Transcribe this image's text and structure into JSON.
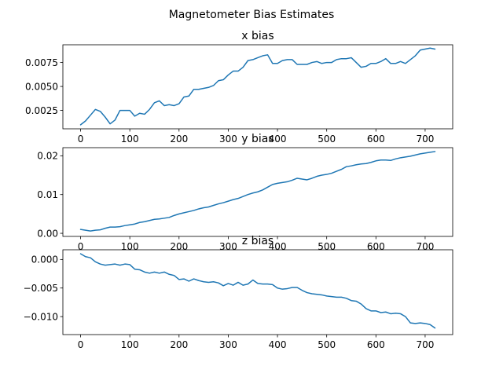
{
  "figure": {
    "title": "Magnetometer Bias Estimates"
  },
  "chart_data": [
    {
      "type": "line",
      "title": "x bias",
      "xlabel": "",
      "ylabel": "",
      "xlim": [
        -36,
        756
      ],
      "ylim": [
        0.00058,
        0.00935
      ],
      "xticks": [
        0,
        100,
        200,
        300,
        400,
        500,
        600,
        700
      ],
      "xtick_labels": [
        "0",
        "100",
        "200",
        "300",
        "400",
        "500",
        "600",
        "700"
      ],
      "yticks": [
        0.0025,
        0.005,
        0.0075
      ],
      "ytick_labels": [
        "0.0025",
        "0.0050",
        "0.0075"
      ],
      "grid": false,
      "line_color": "#1f77b4",
      "series": [
        {
          "x": [
            0,
            10,
            20,
            30,
            40,
            50,
            60,
            70,
            80,
            90,
            100,
            110,
            120,
            130,
            140,
            150,
            160,
            170,
            180,
            190,
            200,
            210,
            220,
            230,
            240,
            250,
            260,
            270,
            280,
            290,
            300,
            310,
            320,
            330,
            340,
            350,
            360,
            370,
            380,
            390,
            400,
            410,
            420,
            430,
            440,
            450,
            460,
            470,
            480,
            490,
            500,
            510,
            520,
            530,
            540,
            550,
            560,
            570,
            580,
            590,
            600,
            610,
            620,
            630,
            640,
            650,
            660,
            670,
            680,
            690,
            700,
            710,
            720
          ],
          "values": [
            0.001,
            0.0014,
            0.002,
            0.0026,
            0.0024,
            0.0018,
            0.0011,
            0.0015,
            0.0025,
            0.0025,
            0.0025,
            0.0019,
            0.0022,
            0.0021,
            0.0026,
            0.0033,
            0.0035,
            0.003,
            0.0031,
            0.003,
            0.0032,
            0.0039,
            0.004,
            0.0047,
            0.0047,
            0.0048,
            0.0049,
            0.0051,
            0.0056,
            0.0057,
            0.0062,
            0.0066,
            0.0066,
            0.007,
            0.0077,
            0.0078,
            0.008,
            0.0082,
            0.0083,
            0.0074,
            0.0074,
            0.0077,
            0.0078,
            0.0078,
            0.0073,
            0.0073,
            0.0073,
            0.0075,
            0.0076,
            0.0074,
            0.0075,
            0.0075,
            0.0078,
            0.0079,
            0.0079,
            0.008,
            0.0075,
            0.007,
            0.0071,
            0.0074,
            0.0074,
            0.0076,
            0.0079,
            0.0074,
            0.0074,
            0.0076,
            0.0074,
            0.0078,
            0.0082,
            0.0088,
            0.0089,
            0.009,
            0.0089
          ]
        }
      ]
    },
    {
      "type": "line",
      "title": "y bias",
      "xlabel": "",
      "ylabel": "",
      "xlim": [
        -36,
        756
      ],
      "ylim": [
        -0.0008,
        0.0221
      ],
      "xticks": [
        0,
        100,
        200,
        300,
        400,
        500,
        600,
        700
      ],
      "xtick_labels": [
        "0",
        "100",
        "200",
        "300",
        "400",
        "500",
        "600",
        "700"
      ],
      "yticks": [
        0.0,
        0.01,
        0.02
      ],
      "ytick_labels": [
        "0.00",
        "0.01",
        "0.02"
      ],
      "grid": false,
      "line_color": "#1f77b4",
      "series": [
        {
          "x": [
            0,
            10,
            20,
            30,
            40,
            50,
            60,
            70,
            80,
            90,
            100,
            110,
            120,
            130,
            140,
            150,
            160,
            170,
            180,
            190,
            200,
            210,
            220,
            230,
            240,
            250,
            260,
            270,
            280,
            290,
            300,
            310,
            320,
            330,
            340,
            350,
            360,
            370,
            380,
            390,
            400,
            410,
            420,
            430,
            440,
            450,
            460,
            470,
            480,
            490,
            500,
            510,
            520,
            530,
            540,
            550,
            560,
            570,
            580,
            590,
            600,
            610,
            620,
            630,
            640,
            650,
            660,
            670,
            680,
            690,
            700,
            710,
            720
          ],
          "values": [
            0.001,
            0.0008,
            0.0006,
            0.0008,
            0.0009,
            0.0013,
            0.0016,
            0.0016,
            0.0017,
            0.002,
            0.0022,
            0.0024,
            0.0028,
            0.003,
            0.0033,
            0.0036,
            0.0037,
            0.0039,
            0.0041,
            0.0046,
            0.005,
            0.0053,
            0.0056,
            0.0059,
            0.0063,
            0.0066,
            0.0068,
            0.0072,
            0.0076,
            0.0079,
            0.0083,
            0.0087,
            0.009,
            0.0095,
            0.01,
            0.0104,
            0.0107,
            0.0112,
            0.0119,
            0.0126,
            0.0129,
            0.0131,
            0.0133,
            0.0137,
            0.0142,
            0.014,
            0.0138,
            0.0142,
            0.0147,
            0.015,
            0.0152,
            0.0155,
            0.016,
            0.0165,
            0.0172,
            0.0174,
            0.0177,
            0.0179,
            0.018,
            0.0183,
            0.0187,
            0.0189,
            0.0189,
            0.0188,
            0.0192,
            0.0195,
            0.0197,
            0.0199,
            0.0202,
            0.0205,
            0.0207,
            0.0209,
            0.0211
          ]
        }
      ]
    },
    {
      "type": "line",
      "title": "z bias",
      "xlabel": "",
      "ylabel": "",
      "xlim": [
        -36,
        756
      ],
      "ylim": [
        -0.01315,
        0.0017
      ],
      "xticks": [
        0,
        100,
        200,
        300,
        400,
        500,
        600,
        700
      ],
      "xtick_labels": [
        "0",
        "100",
        "200",
        "300",
        "400",
        "500",
        "600",
        "700"
      ],
      "yticks": [
        0.0,
        -0.005,
        -0.01
      ],
      "ytick_labels": [
        "0.000",
        "−0.005",
        "−0.010"
      ],
      "grid": false,
      "line_color": "#1f77b4",
      "series": [
        {
          "x": [
            0,
            10,
            20,
            30,
            40,
            50,
            60,
            70,
            80,
            90,
            100,
            110,
            120,
            130,
            140,
            150,
            160,
            170,
            180,
            190,
            200,
            210,
            220,
            230,
            240,
            250,
            260,
            270,
            280,
            290,
            300,
            310,
            320,
            330,
            340,
            350,
            360,
            370,
            380,
            390,
            400,
            410,
            420,
            430,
            440,
            450,
            460,
            470,
            480,
            490,
            500,
            510,
            520,
            530,
            540,
            550,
            560,
            570,
            580,
            590,
            600,
            610,
            620,
            630,
            640,
            650,
            660,
            670,
            680,
            690,
            700,
            710,
            720
          ],
          "values": [
            0.001,
            0.0005,
            0.0003,
            -0.0004,
            -0.0008,
            -0.001,
            -0.0009,
            -0.0008,
            -0.001,
            -0.0008,
            -0.0009,
            -0.0017,
            -0.0018,
            -0.0022,
            -0.0024,
            -0.0022,
            -0.0024,
            -0.0022,
            -0.0026,
            -0.0028,
            -0.0035,
            -0.0034,
            -0.0038,
            -0.0034,
            -0.0037,
            -0.0039,
            -0.004,
            -0.0039,
            -0.0041,
            -0.0046,
            -0.0042,
            -0.0045,
            -0.004,
            -0.0045,
            -0.0043,
            -0.0036,
            -0.0042,
            -0.0043,
            -0.0043,
            -0.0044,
            -0.005,
            -0.0052,
            -0.0051,
            -0.0049,
            -0.0049,
            -0.0054,
            -0.0058,
            -0.006,
            -0.0061,
            -0.0062,
            -0.0064,
            -0.0065,
            -0.0066,
            -0.0066,
            -0.0068,
            -0.0072,
            -0.0073,
            -0.0078,
            -0.0086,
            -0.009,
            -0.009,
            -0.0093,
            -0.0092,
            -0.0095,
            -0.0094,
            -0.0095,
            -0.01,
            -0.0111,
            -0.0112,
            -0.0111,
            -0.0112,
            -0.0114,
            -0.012
          ]
        }
      ]
    }
  ]
}
